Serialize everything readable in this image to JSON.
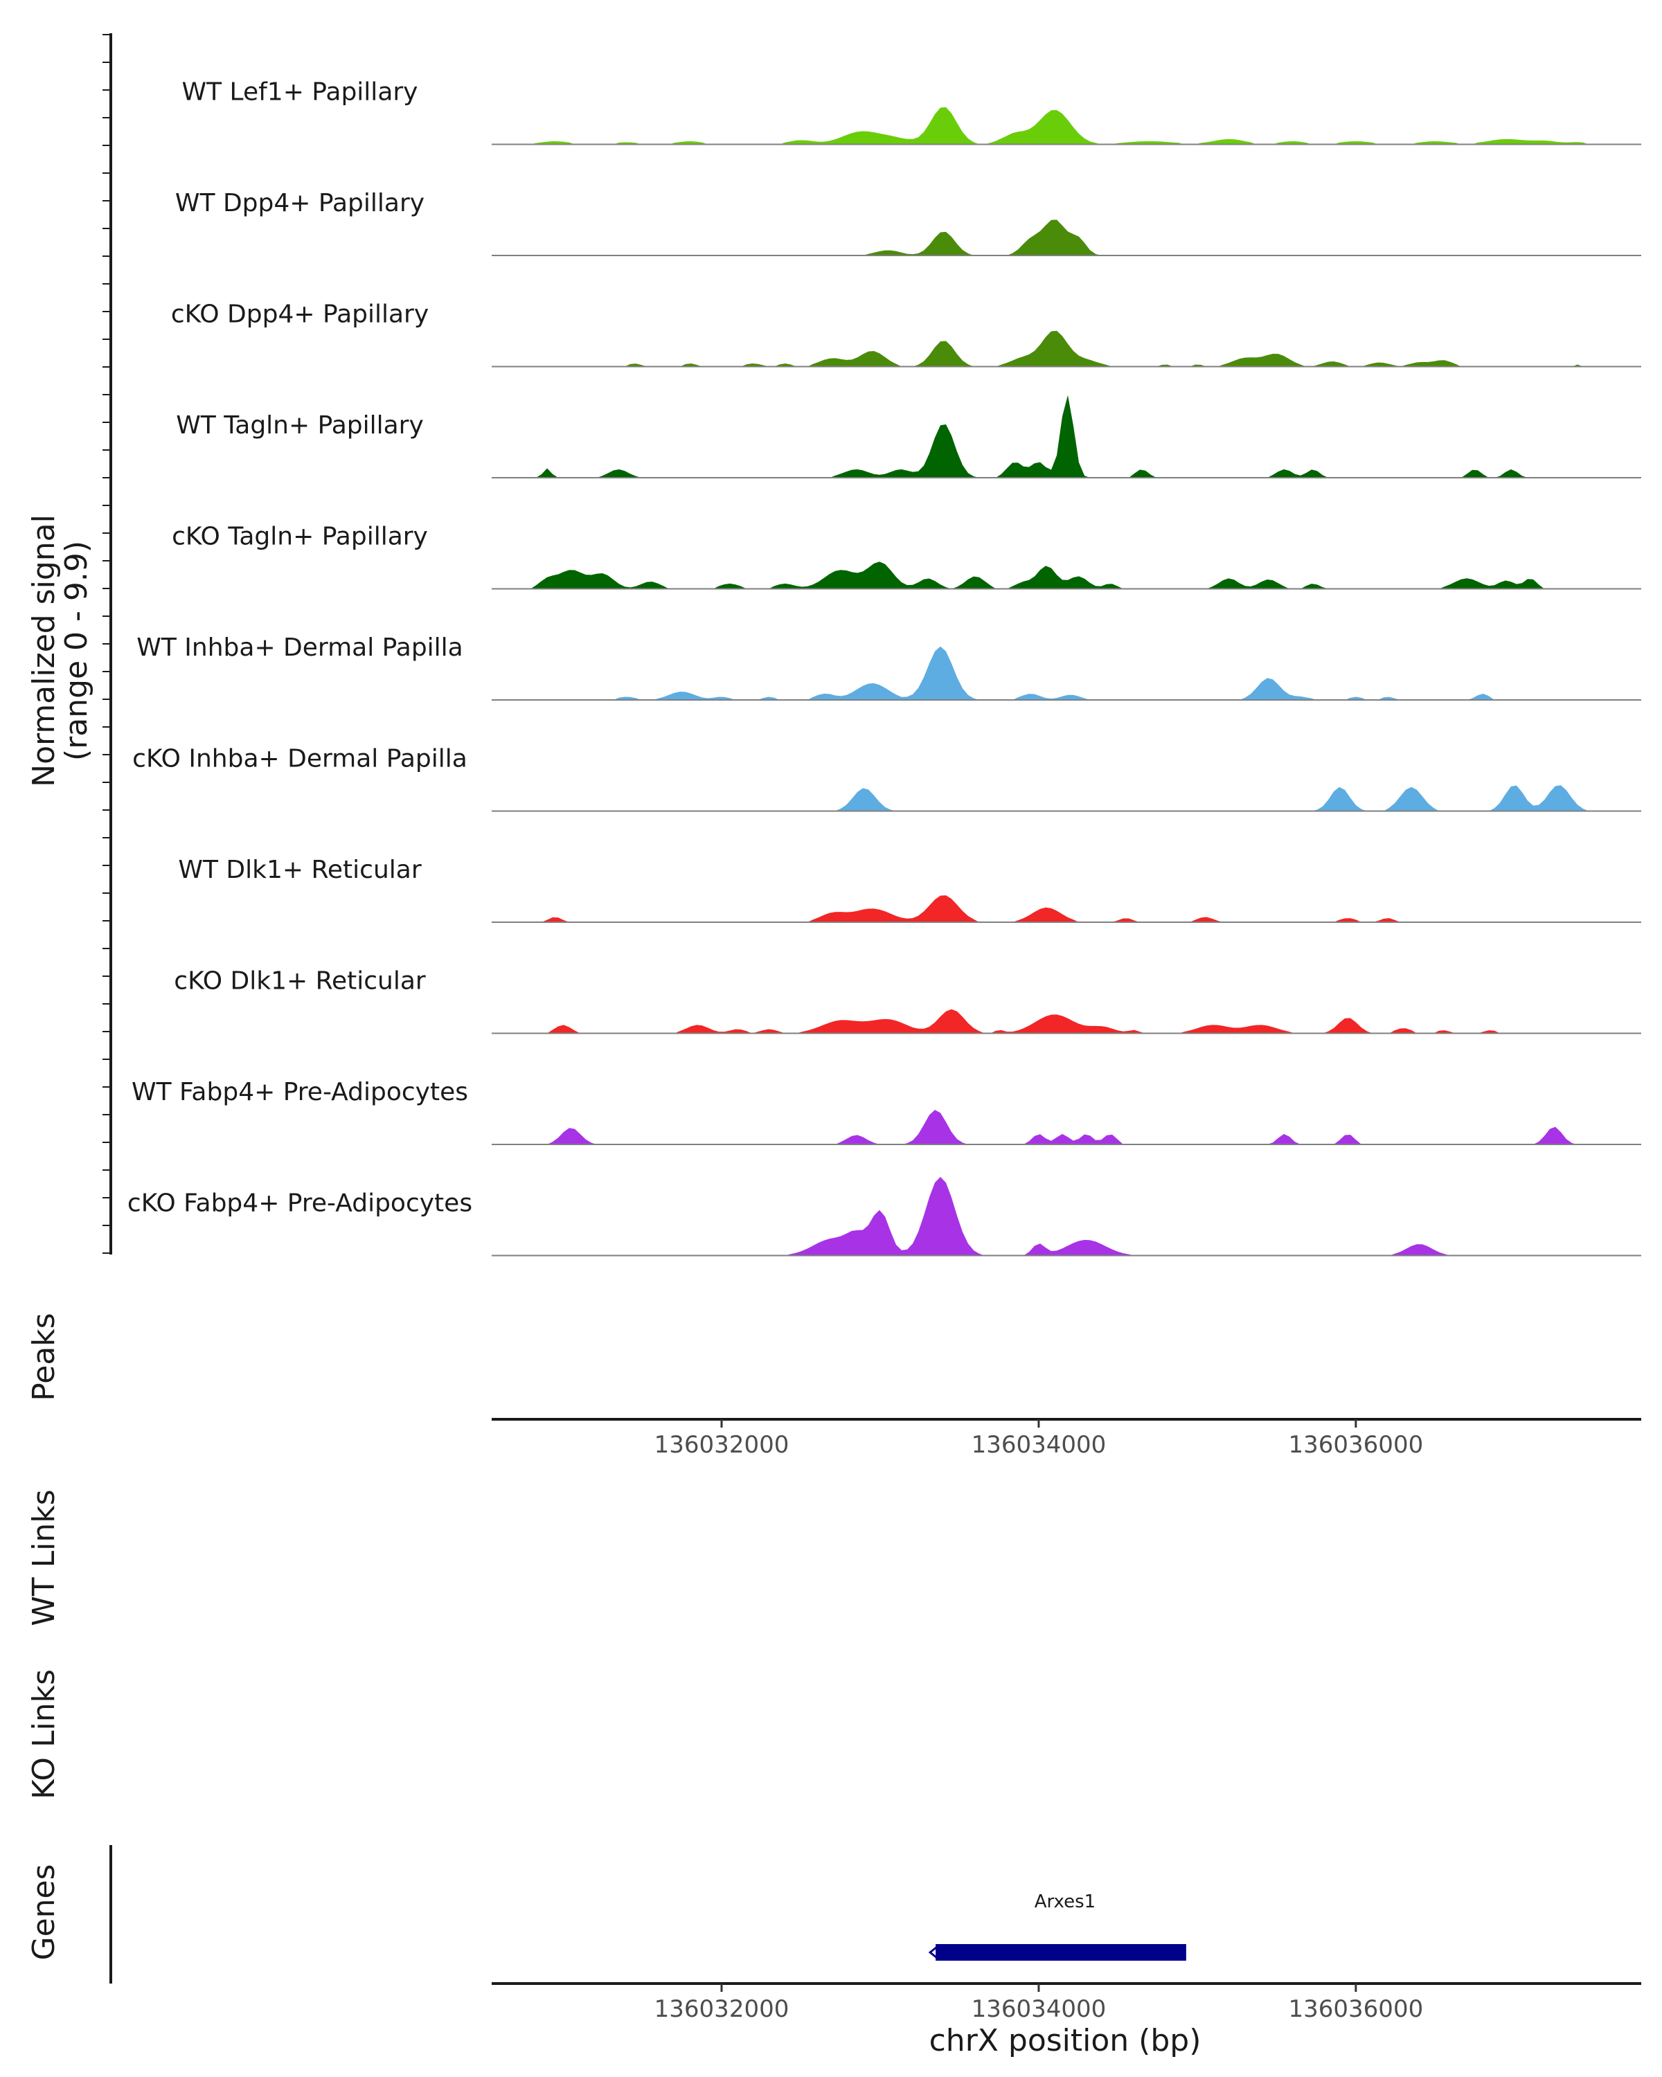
{
  "chart_data": {
    "type": "area",
    "title": "",
    "ylabel": "Normalized signal",
    "ylabel_range": "(range 0 - 9.9)",
    "ylim": [
      0,
      9.9
    ],
    "xlabel": "chrX position (bp)",
    "xlim": [
      136030550,
      136037800
    ],
    "x_ticks": [
      136032000,
      136034000,
      136036000
    ],
    "x_tick_labels": [
      "136032000",
      "136034000",
      "136036000"
    ],
    "tracks": [
      {
        "name": "WT Lef1+ Papillary",
        "color": "#6ACD0A",
        "peaks": [
          [
            136030950,
            90,
            0.3
          ],
          [
            136031400,
            80,
            0.2
          ],
          [
            136031800,
            80,
            0.3
          ],
          [
            136032500,
            80,
            0.4
          ],
          [
            136032880,
            120,
            1.2
          ],
          [
            136033100,
            100,
            0.5
          ],
          [
            136033400,
            80,
            3.6
          ],
          [
            136034100,
            100,
            3.3
          ],
          [
            136033850,
            80,
            1.0
          ],
          [
            136034700,
            150,
            0.3
          ],
          [
            136035200,
            100,
            0.5
          ],
          [
            136035600,
            80,
            0.3
          ],
          [
            136036000,
            100,
            0.3
          ],
          [
            136036500,
            100,
            0.3
          ],
          [
            136036950,
            120,
            0.5
          ],
          [
            136037200,
            80,
            0.3
          ],
          [
            136037400,
            60,
            0.2
          ]
        ]
      },
      {
        "name": "WT Dpp4+ Papillary",
        "color": "#4B8B0A",
        "peaks": [
          [
            136033050,
            80,
            0.5
          ],
          [
            136033400,
            70,
            2.3
          ],
          [
            136033950,
            60,
            1.4
          ],
          [
            136034100,
            70,
            3.4
          ],
          [
            136034250,
            50,
            1.5
          ]
        ]
      },
      {
        "name": "cKO Dpp4+ Papillary",
        "color": "#4B8B0A",
        "peaks": [
          [
            136031450,
            40,
            0.3
          ],
          [
            136031800,
            40,
            0.3
          ],
          [
            136032200,
            50,
            0.3
          ],
          [
            136032400,
            40,
            0.3
          ],
          [
            136032700,
            80,
            0.8
          ],
          [
            136032950,
            80,
            1.5
          ],
          [
            136033400,
            70,
            2.5
          ],
          [
            136033900,
            80,
            0.8
          ],
          [
            136034100,
            80,
            3.4
          ],
          [
            136034300,
            80,
            0.6
          ],
          [
            136034800,
            40,
            0.2
          ],
          [
            136035000,
            40,
            0.2
          ],
          [
            136035300,
            80,
            0.8
          ],
          [
            136035500,
            80,
            1.2
          ],
          [
            136035850,
            60,
            0.5
          ],
          [
            136036150,
            60,
            0.4
          ],
          [
            136036400,
            60,
            0.4
          ],
          [
            136036550,
            60,
            0.6
          ],
          [
            136037400,
            30,
            0.2
          ]
        ]
      },
      {
        "name": "WT Tagln+ Papillary",
        "color": "#006400",
        "peaks": [
          [
            136030900,
            25,
            0.9
          ],
          [
            136031350,
            60,
            0.8
          ],
          [
            136032850,
            80,
            0.8
          ],
          [
            136033130,
            70,
            0.8
          ],
          [
            136033400,
            70,
            5.2
          ],
          [
            136033850,
            50,
            1.5
          ],
          [
            136034000,
            50,
            1.5
          ],
          [
            136034180,
            40,
            7.9
          ],
          [
            136034650,
            40,
            0.8
          ],
          [
            136035550,
            50,
            0.8
          ],
          [
            136035730,
            40,
            0.8
          ],
          [
            136036750,
            40,
            0.8
          ],
          [
            136036980,
            40,
            0.8
          ]
        ]
      },
      {
        "name": "cKO Tagln+ Papillary",
        "color": "#006400",
        "peaks": [
          [
            136030900,
            50,
            0.8
          ],
          [
            136031050,
            80,
            1.8
          ],
          [
            136031250,
            70,
            1.4
          ],
          [
            136031550,
            60,
            0.7
          ],
          [
            136032050,
            60,
            0.5
          ],
          [
            136032400,
            60,
            0.5
          ],
          [
            136032750,
            100,
            1.8
          ],
          [
            136033000,
            80,
            2.5
          ],
          [
            136033300,
            60,
            1.0
          ],
          [
            136033600,
            60,
            1.2
          ],
          [
            136033900,
            50,
            0.6
          ],
          [
            136034050,
            60,
            2.2
          ],
          [
            136034250,
            60,
            1.2
          ],
          [
            136034450,
            40,
            0.5
          ],
          [
            136035200,
            60,
            1.0
          ],
          [
            136035450,
            60,
            0.9
          ],
          [
            136035730,
            40,
            0.5
          ],
          [
            136036700,
            80,
            1.0
          ],
          [
            136036950,
            50,
            0.8
          ],
          [
            136037100,
            40,
            1.0
          ]
        ]
      },
      {
        "name": "WT Inhba+ Dermal Papilla",
        "color": "#5DADE2",
        "peaks": [
          [
            136031400,
            60,
            0.3
          ],
          [
            136031750,
            80,
            0.8
          ],
          [
            136032000,
            50,
            0.3
          ],
          [
            136032300,
            40,
            0.3
          ],
          [
            136032650,
            60,
            0.6
          ],
          [
            136032950,
            100,
            1.6
          ],
          [
            136033380,
            80,
            5.1
          ],
          [
            136033950,
            60,
            0.6
          ],
          [
            136034200,
            60,
            0.5
          ],
          [
            136035450,
            70,
            2.1
          ],
          [
            136035650,
            60,
            0.3
          ],
          [
            136036000,
            40,
            0.3
          ],
          [
            136036200,
            40,
            0.3
          ],
          [
            136036800,
            40,
            0.6
          ]
        ]
      },
      {
        "name": "cKO Inhba+ Dermal Papilla",
        "color": "#5DADE2",
        "peaks": [
          [
            136032900,
            70,
            2.2
          ],
          [
            136035900,
            60,
            2.3
          ],
          [
            136036350,
            70,
            2.3
          ],
          [
            136037000,
            60,
            2.5
          ],
          [
            136037280,
            70,
            2.5
          ]
        ]
      },
      {
        "name": "WT Dlk1+ Reticular",
        "color": "#F22626",
        "peaks": [
          [
            136030950,
            40,
            0.5
          ],
          [
            136032700,
            80,
            0.8
          ],
          [
            136032950,
            120,
            1.3
          ],
          [
            136033400,
            90,
            2.6
          ],
          [
            136034050,
            90,
            1.4
          ],
          [
            136034550,
            40,
            0.4
          ],
          [
            136035050,
            50,
            0.5
          ],
          [
            136035950,
            50,
            0.4
          ],
          [
            136036200,
            40,
            0.4
          ]
        ]
      },
      {
        "name": "cKO Dlk1+ Reticular",
        "color": "#F22626",
        "peaks": [
          [
            136031000,
            50,
            0.8
          ],
          [
            136031850,
            70,
            0.8
          ],
          [
            136032100,
            50,
            0.4
          ],
          [
            136032300,
            50,
            0.4
          ],
          [
            136032750,
            120,
            1.2
          ],
          [
            136033050,
            120,
            1.3
          ],
          [
            136033450,
            80,
            2.3
          ],
          [
            136033750,
            30,
            0.3
          ],
          [
            136034100,
            120,
            1.8
          ],
          [
            136034400,
            80,
            0.6
          ],
          [
            136034600,
            30,
            0.3
          ],
          [
            136035100,
            100,
            0.8
          ],
          [
            136035400,
            100,
            0.8
          ],
          [
            136035950,
            60,
            1.5
          ],
          [
            136036300,
            50,
            0.5
          ],
          [
            136036550,
            40,
            0.3
          ],
          [
            136036850,
            40,
            0.3
          ]
        ]
      },
      {
        "name": "WT Fabp4+ Pre-Adipocytes",
        "color": "#A833E6",
        "peaks": [
          [
            136031050,
            60,
            1.6
          ],
          [
            136032850,
            60,
            0.9
          ],
          [
            136033350,
            70,
            3.3
          ],
          [
            136034000,
            40,
            1.0
          ],
          [
            136034150,
            40,
            1.0
          ],
          [
            136034300,
            40,
            1.0
          ],
          [
            136034450,
            40,
            1.0
          ],
          [
            136035550,
            40,
            1.0
          ],
          [
            136035950,
            40,
            1.0
          ],
          [
            136037250,
            50,
            1.7
          ]
        ]
      },
      {
        "name": "cKO Fabp4+ Pre-Adipocytes",
        "color": "#A833E6",
        "peaks": [
          [
            136032700,
            120,
            1.6
          ],
          [
            136032850,
            60,
            1.5
          ],
          [
            136033000,
            60,
            4.2
          ],
          [
            136033380,
            90,
            7.5
          ],
          [
            136034000,
            40,
            1.1
          ],
          [
            136034300,
            120,
            1.5
          ],
          [
            136036400,
            80,
            1.1
          ]
        ]
      }
    ],
    "side_labels": {
      "peaks": "Peaks",
      "wt_links": "WT Links",
      "ko_links": "KO Links",
      "genes": "Genes"
    },
    "gene": {
      "name": "Arxes1",
      "start": 136033350,
      "end": 136034930,
      "strand": "-",
      "color": "#00008B"
    }
  }
}
